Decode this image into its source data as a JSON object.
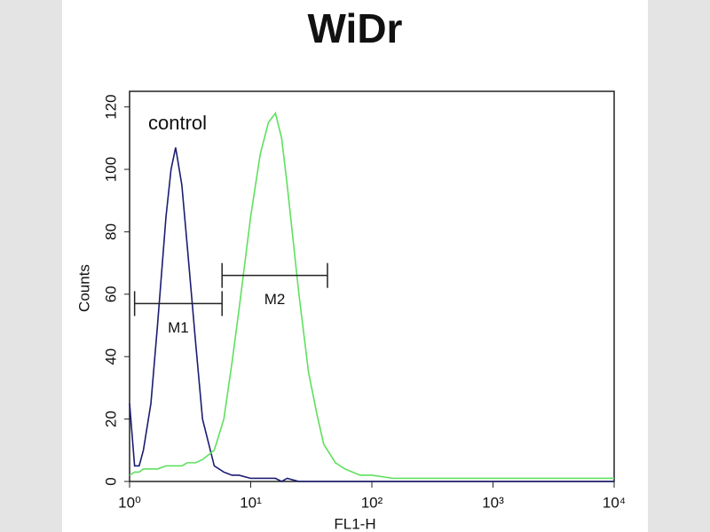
{
  "chart_data": {
    "type": "line",
    "title": "WiDr",
    "x_label": "FL1-H",
    "y_label": "Counts",
    "x_log": true,
    "x": [
      1,
      1.1,
      1.2,
      1.3,
      1.5,
      1.7,
      2,
      2.2,
      2.4,
      2.7,
      3,
      3.5,
      4,
      5,
      6,
      7,
      8,
      10,
      12,
      14,
      16,
      18,
      20,
      25,
      30,
      35,
      40,
      50,
      60,
      80,
      100,
      150,
      200,
      300,
      500,
      1000,
      2000,
      5000,
      10000
    ],
    "series": [
      {
        "name": "control",
        "color": "#1c1c72",
        "values": [
          25,
          5,
          5,
          10,
          25,
          50,
          85,
          100,
          107,
          95,
          75,
          45,
          20,
          5,
          3,
          2,
          2,
          1,
          1,
          1,
          1,
          0,
          1,
          0,
          0,
          0,
          0,
          0,
          0,
          0,
          0,
          0,
          0,
          0,
          0,
          0,
          0,
          0,
          0
        ]
      },
      {
        "color": "#5ee05e",
        "values": [
          2,
          3,
          3,
          4,
          4,
          4,
          5,
          5,
          5,
          5,
          6,
          6,
          7,
          10,
          20,
          38,
          55,
          85,
          105,
          115,
          118,
          110,
          95,
          60,
          35,
          22,
          12,
          6,
          4,
          2,
          2,
          1,
          1,
          1,
          1,
          1,
          1,
          1,
          1
        ]
      }
    ],
    "gates": [
      {
        "name": "M1",
        "x": [
          1.1,
          5.8
        ],
        "y": 57
      },
      {
        "name": "M2",
        "x": [
          5.8,
          43
        ],
        "y": 66
      }
    ],
    "xlim": [
      1,
      10000
    ],
    "ylim": [
      0,
      125
    ],
    "xticks": [
      {
        "value": 1,
        "label": "10⁰"
      },
      {
        "value": 10,
        "label": "10¹"
      },
      {
        "value": 100,
        "label": "10²"
      },
      {
        "value": 1000,
        "label": "10³"
      },
      {
        "value": 10000,
        "label": "10⁴"
      }
    ],
    "yticks": [
      0,
      20,
      40,
      60,
      80,
      100,
      120
    ]
  }
}
